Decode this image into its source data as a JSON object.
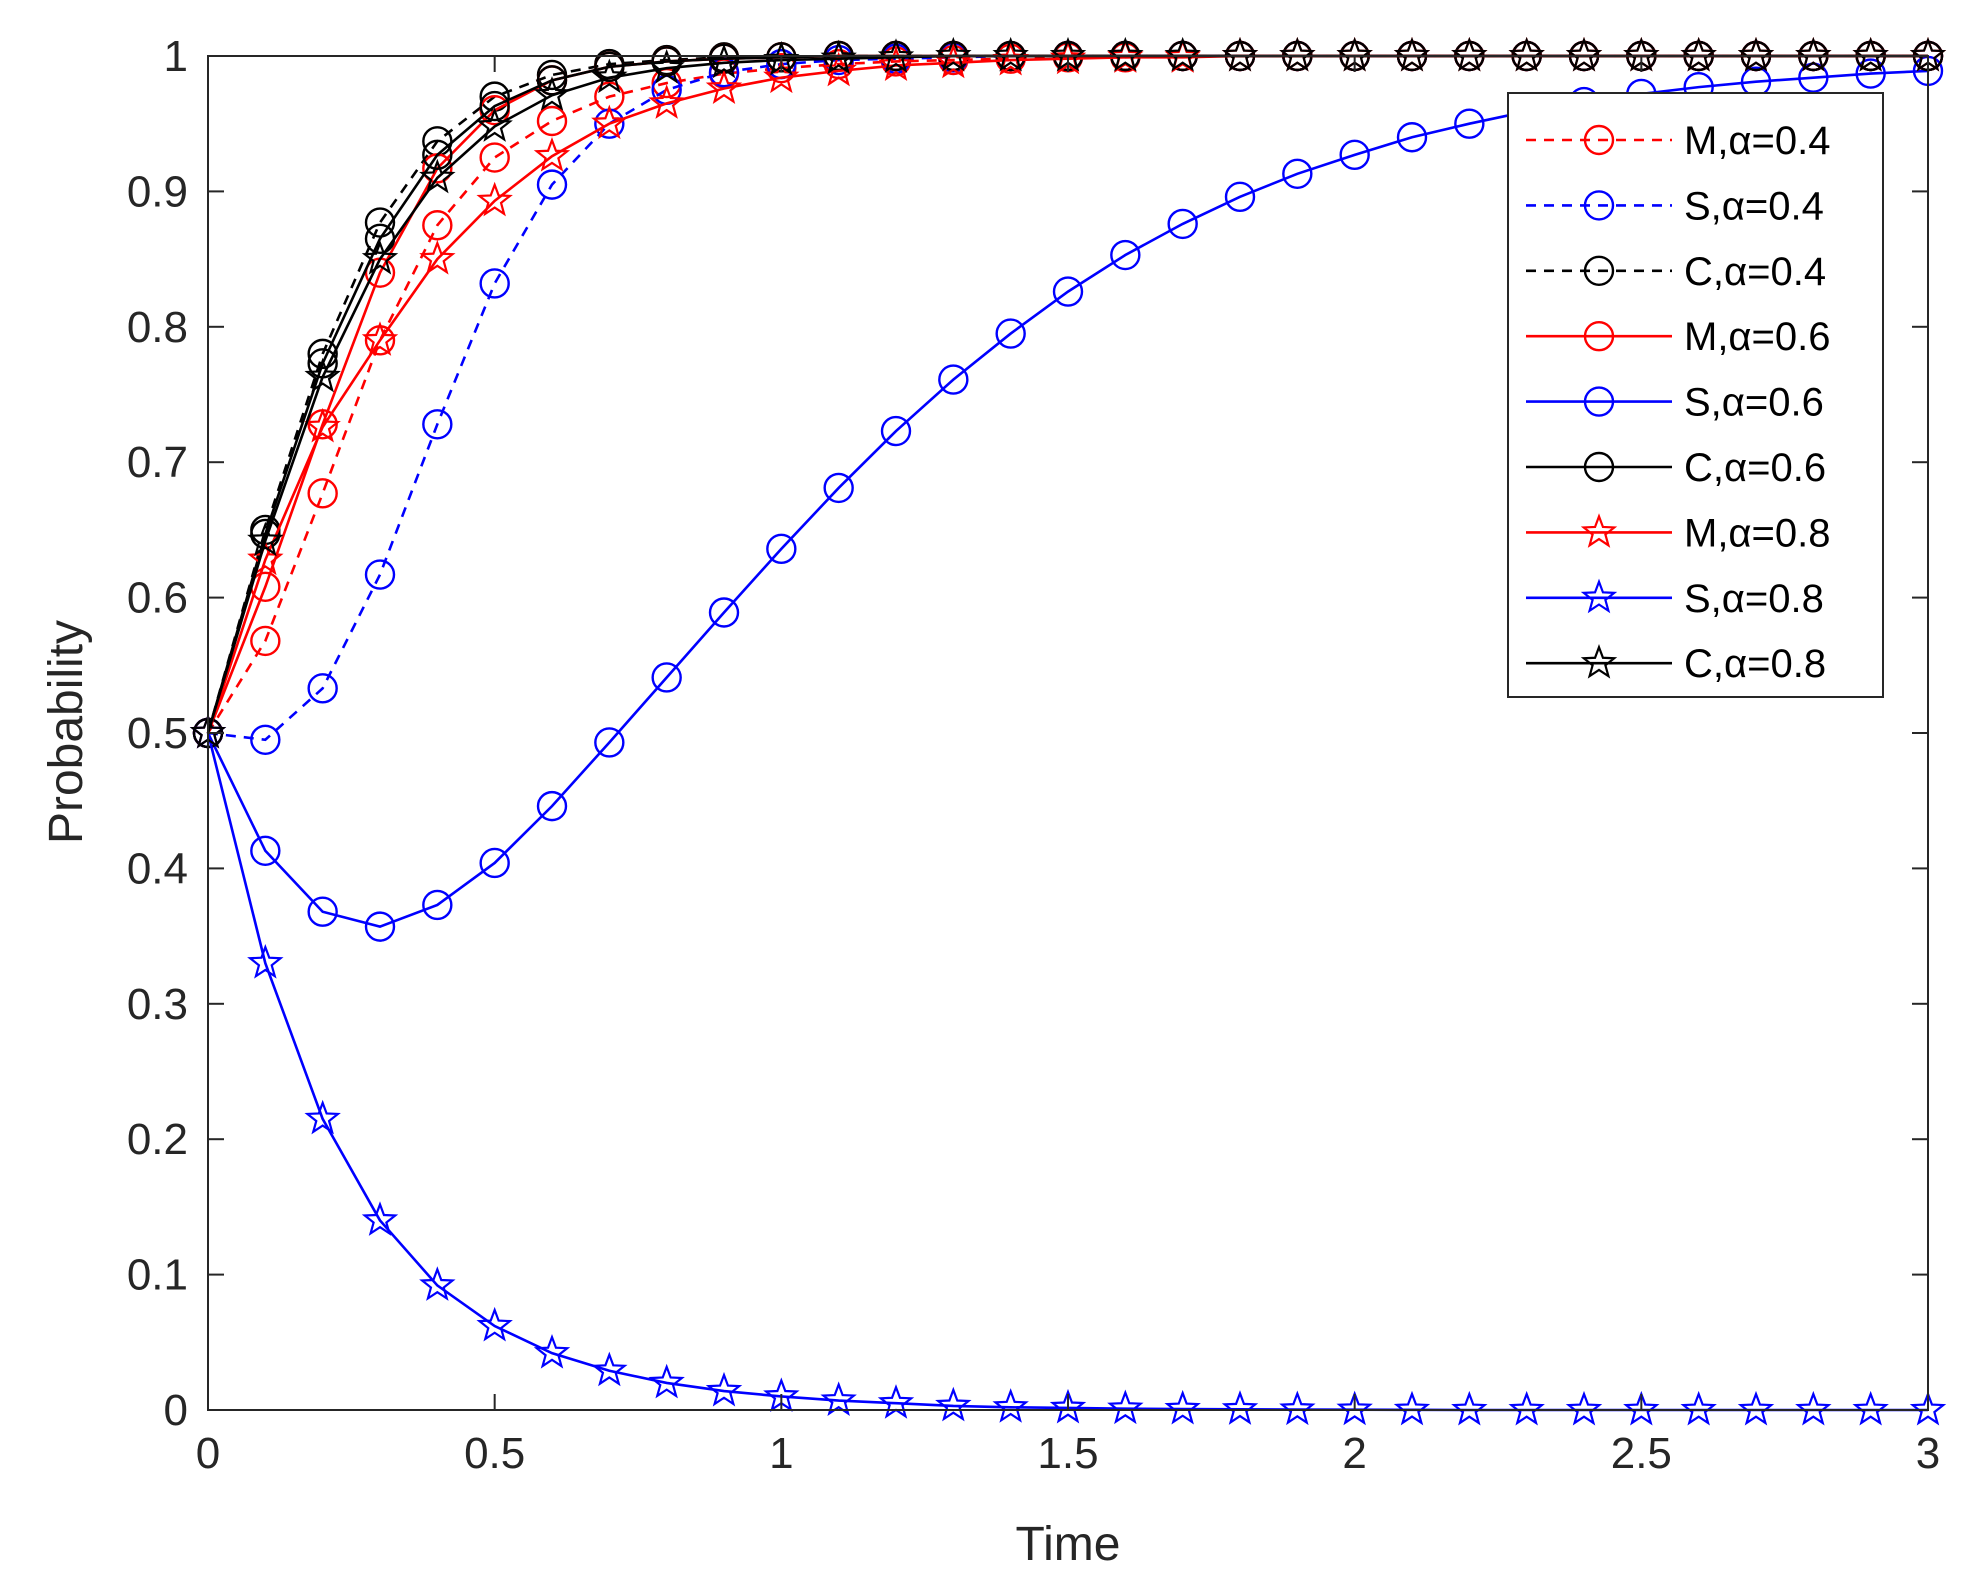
{
  "chart_data": {
    "type": "line",
    "title": "",
    "xlabel": "Time",
    "ylabel": "Probability",
    "xlim": [
      0,
      3
    ],
    "ylim": [
      0,
      1
    ],
    "xticks": [
      0,
      0.5,
      1,
      1.5,
      2,
      2.5,
      3
    ],
    "xtick_labels": [
      "0",
      "0.5",
      "1",
      "1.5",
      "2",
      "2.5",
      "3"
    ],
    "yticks": [
      0,
      0.1,
      0.2,
      0.3,
      0.4,
      0.5,
      0.6,
      0.7,
      0.8,
      0.9,
      1
    ],
    "ytick_labels": [
      "0",
      "0.1",
      "0.2",
      "0.3",
      "0.4",
      "0.5",
      "0.6",
      "0.7",
      "0.8",
      "0.9",
      "1"
    ],
    "grid": false,
    "legend_position": "top-right",
    "x": [
      0,
      0.1,
      0.2,
      0.3,
      0.4,
      0.5,
      0.6,
      0.7,
      0.8,
      0.9,
      1.0,
      1.1,
      1.2,
      1.3,
      1.4,
      1.5,
      1.6,
      1.7,
      1.8,
      1.9,
      2.0,
      2.1,
      2.2,
      2.3,
      2.4,
      2.5,
      2.6,
      2.7,
      2.8,
      2.9,
      3.0
    ],
    "series": [
      {
        "name": "M,α=0.4",
        "color": "#ff0000",
        "line": "dashed",
        "marker": "circle",
        "values": [
          0.5,
          0.568,
          0.677,
          0.79,
          0.875,
          0.925,
          0.952,
          0.97,
          0.98,
          0.987,
          0.991,
          0.994,
          0.996,
          0.997,
          0.998,
          0.999,
          0.999,
          1,
          1,
          1,
          1,
          1,
          1,
          1,
          1,
          1,
          1,
          1,
          1,
          1,
          1
        ]
      },
      {
        "name": "S,α=0.4",
        "color": "#0000ff",
        "line": "dashed",
        "marker": "circle",
        "values": [
          0.5,
          0.495,
          0.533,
          0.617,
          0.728,
          0.832,
          0.905,
          0.95,
          0.975,
          0.988,
          0.994,
          0.997,
          0.998,
          0.999,
          1,
          1,
          1,
          1,
          1,
          1,
          1,
          1,
          1,
          1,
          1,
          1,
          1,
          1,
          1,
          1,
          1
        ]
      },
      {
        "name": "C,α=0.4",
        "color": "#000000",
        "line": "dashed",
        "marker": "circle",
        "values": [
          0.5,
          0.65,
          0.78,
          0.877,
          0.937,
          0.97,
          0.986,
          0.994,
          0.997,
          0.999,
          0.999,
          1,
          1,
          1,
          1,
          1,
          1,
          1,
          1,
          1,
          1,
          1,
          1,
          1,
          1,
          1,
          1,
          1,
          1,
          1,
          1
        ]
      },
      {
        "name": "M,α=0.6",
        "color": "#ff0000",
        "line": "solid",
        "marker": "circle",
        "values": [
          0.5,
          0.608,
          0.728,
          0.84,
          0.917,
          0.96,
          0.982,
          0.992,
          0.996,
          0.998,
          0.999,
          1,
          1,
          1,
          1,
          1,
          1,
          1,
          1,
          1,
          1,
          1,
          1,
          1,
          1,
          1,
          1,
          1,
          1,
          1,
          1
        ]
      },
      {
        "name": "S,α=0.6",
        "color": "#0000ff",
        "line": "solid",
        "marker": "circle",
        "values": [
          0.5,
          0.413,
          0.368,
          0.357,
          0.373,
          0.404,
          0.446,
          0.493,
          0.541,
          0.589,
          0.636,
          0.681,
          0.723,
          0.761,
          0.795,
          0.826,
          0.853,
          0.876,
          0.896,
          0.913,
          0.927,
          0.94,
          0.95,
          0.959,
          0.966,
          0.972,
          0.977,
          0.981,
          0.984,
          0.987,
          0.989
        ]
      },
      {
        "name": "C,α=0.6",
        "color": "#000000",
        "line": "solid",
        "marker": "circle",
        "values": [
          0.5,
          0.647,
          0.773,
          0.865,
          0.927,
          0.963,
          0.982,
          0.992,
          0.996,
          0.998,
          0.999,
          1,
          1,
          1,
          1,
          1,
          1,
          1,
          1,
          1,
          1,
          1,
          1,
          1,
          1,
          1,
          1,
          1,
          1,
          1,
          1
        ]
      },
      {
        "name": "M,α=0.8",
        "color": "#ff0000",
        "line": "solid",
        "marker": "star",
        "values": [
          0.5,
          0.628,
          0.726,
          0.79,
          0.85,
          0.893,
          0.926,
          0.95,
          0.965,
          0.976,
          0.984,
          0.989,
          0.993,
          0.995,
          0.997,
          0.998,
          0.999,
          0.999,
          1,
          1,
          1,
          1,
          1,
          1,
          1,
          1,
          1,
          1,
          1,
          1,
          1
        ]
      },
      {
        "name": "S,α=0.8",
        "color": "#0000ff",
        "line": "solid",
        "marker": "star",
        "values": [
          0.5,
          0.33,
          0.215,
          0.14,
          0.092,
          0.062,
          0.042,
          0.029,
          0.02,
          0.014,
          0.01,
          0.007,
          0.005,
          0.003,
          0.002,
          0.0015,
          0.001,
          0.0007,
          0.0005,
          0.0003,
          0.0002,
          0.0001,
          0,
          0,
          0,
          0,
          0,
          0,
          0,
          0,
          0
        ]
      },
      {
        "name": "C,α=0.8",
        "color": "#000000",
        "line": "solid",
        "marker": "star",
        "values": [
          0.5,
          0.642,
          0.763,
          0.85,
          0.91,
          0.948,
          0.971,
          0.984,
          0.991,
          0.995,
          0.997,
          0.998,
          0.999,
          1,
          1,
          1,
          1,
          1,
          1,
          1,
          1,
          1,
          1,
          1,
          1,
          1,
          1,
          1,
          1,
          1,
          1
        ]
      }
    ]
  }
}
